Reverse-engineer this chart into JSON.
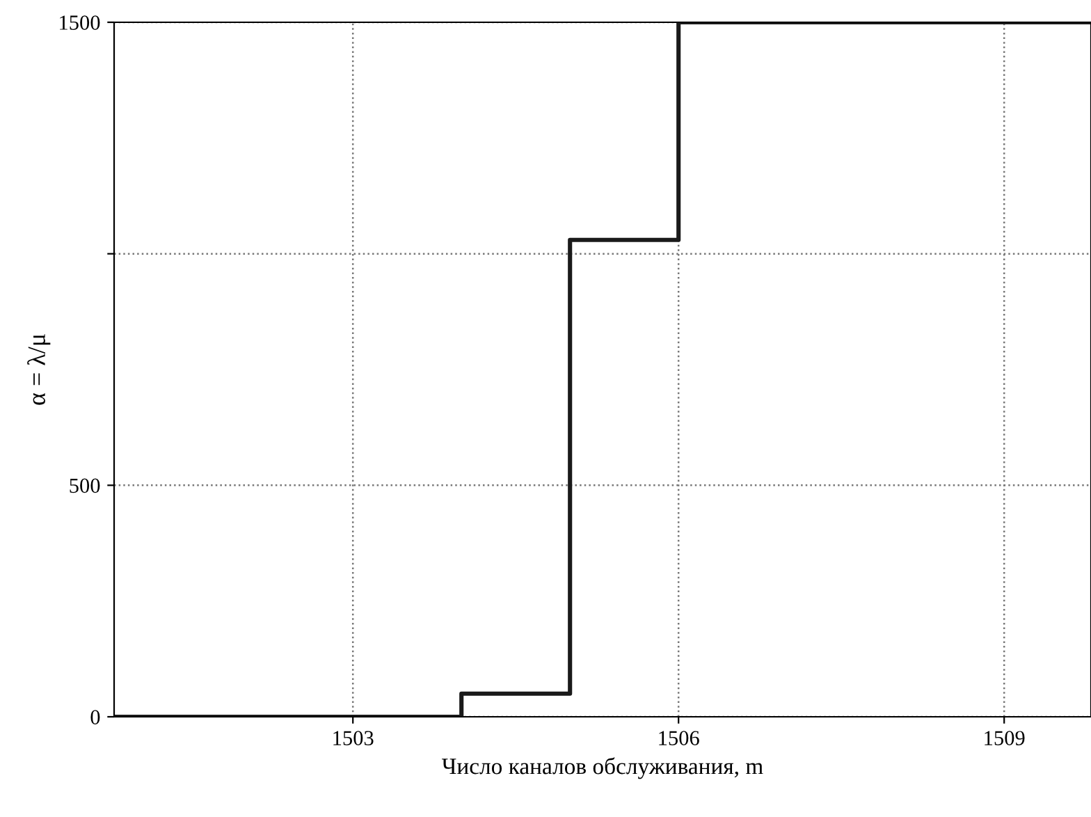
{
  "chart_data": {
    "type": "step",
    "xlabel": "Число каналов обслуживания, m",
    "ylabel": "α = λ/μ",
    "x": [
      1500.8,
      1504,
      1505,
      1506,
      1509.8
    ],
    "series": [
      {
        "color": "#1a1a1a",
        "values": [
          0,
          50,
          1030,
          1500,
          1500
        ]
      }
    ],
    "xlim": [
      1500.8,
      1509.8
    ],
    "xticks": [
      1503,
      1506,
      1509
    ],
    "ylim": [
      0,
      1500
    ],
    "yticks": [
      0,
      500,
      {
        "value": 1000,
        "label": null
      },
      1500
    ],
    "grid": true,
    "line_style": "solid",
    "legend": false
  }
}
